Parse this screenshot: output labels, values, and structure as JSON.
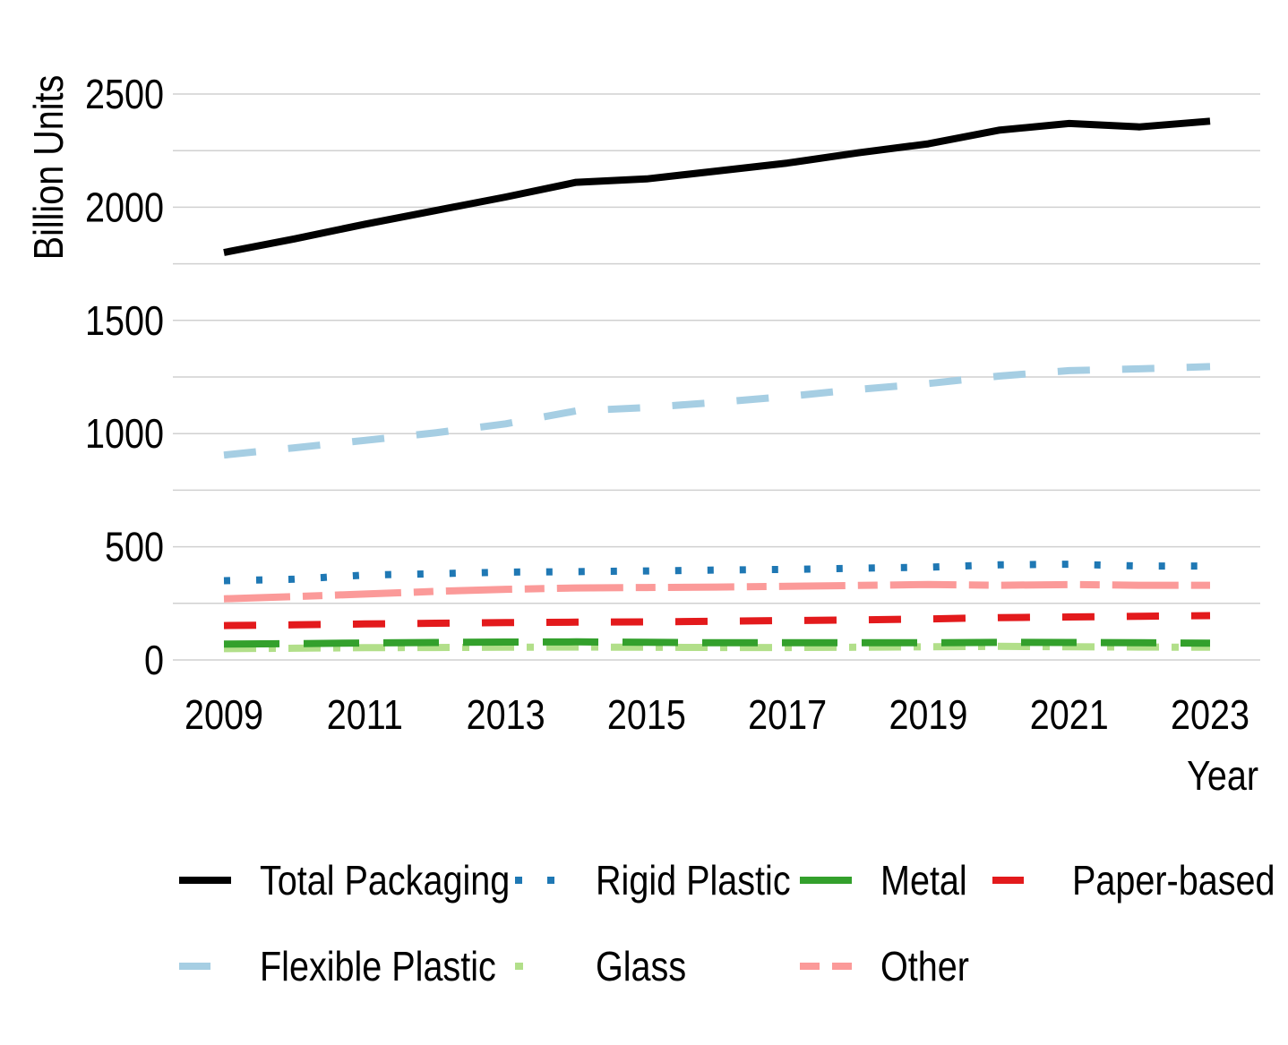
{
  "chart_data": {
    "type": "line",
    "title": "",
    "xlabel": "Year",
    "ylabel": "Billion Units",
    "ylim": [
      0,
      2500
    ],
    "yticks": [
      0,
      500,
      1000,
      1500,
      2000,
      2500
    ],
    "xticks": [
      2009,
      2011,
      2013,
      2015,
      2017,
      2019,
      2021,
      2023
    ],
    "grid": true,
    "legend_position": "bottom",
    "x": [
      2009,
      2010,
      2011,
      2012,
      2013,
      2014,
      2015,
      2016,
      2017,
      2018,
      2019,
      2020,
      2021,
      2022,
      2023
    ],
    "series": [
      {
        "name": "Total Packaging",
        "color": "#000000",
        "style": "solid",
        "values": [
          1800,
          1860,
          1925,
          1985,
          2045,
          2110,
          2125,
          2160,
          2195,
          2240,
          2280,
          2340,
          2370,
          2355,
          2380
        ]
      },
      {
        "name": "Rigid Plastic",
        "color": "#1f78b4",
        "style": "dotted",
        "values": [
          350,
          357,
          375,
          381,
          388,
          390,
          393,
          397,
          400,
          405,
          410,
          420,
          423,
          415,
          415
        ]
      },
      {
        "name": "Metal",
        "color": "#33a02c",
        "style": "long-dash",
        "values": [
          70,
          72,
          75,
          77,
          79,
          80,
          78,
          76,
          76,
          76,
          76,
          78,
          77,
          76,
          74
        ]
      },
      {
        "name": "Paper-based",
        "color": "#e31a1c",
        "style": "dash",
        "values": [
          152,
          155,
          159,
          162,
          165,
          167,
          168,
          171,
          174,
          177,
          181,
          187,
          190,
          193,
          196
        ]
      },
      {
        "name": "Flexible Plastic",
        "color": "#a6cee3",
        "style": "dash",
        "values": [
          905,
          937,
          970,
          1003,
          1043,
          1100,
          1115,
          1138,
          1164,
          1195,
          1221,
          1254,
          1278,
          1286,
          1296
        ]
      },
      {
        "name": "Glass",
        "color": "#b2df8a",
        "style": "dash-dot",
        "values": [
          50,
          52,
          54,
          55,
          56,
          57,
          56,
          55,
          55,
          56,
          58,
          60,
          58,
          57,
          56
        ]
      },
      {
        "name": "Other",
        "color": "#fb9a99",
        "style": "long-short",
        "values": [
          270,
          280,
          291,
          303,
          312,
          318,
          320,
          322,
          325,
          329,
          333,
          330,
          333,
          330,
          330
        ]
      }
    ]
  }
}
